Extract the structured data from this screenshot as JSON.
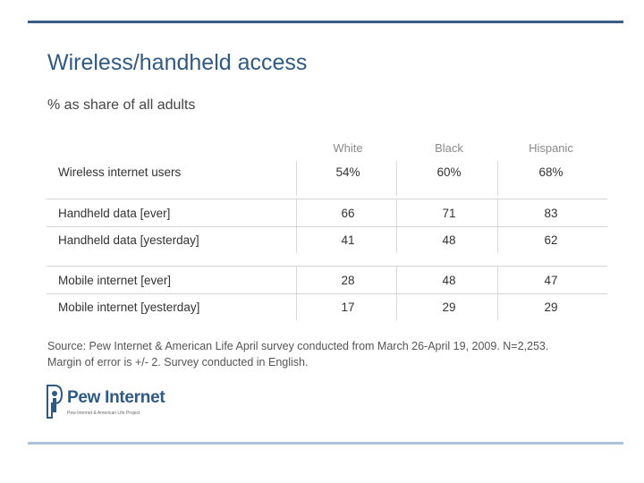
{
  "title": "Wireless/handheld access",
  "subtitle": "% as share of all adults",
  "table": {
    "columns": [
      "White",
      "Black",
      "Hispanic"
    ],
    "rows": [
      {
        "label": "Wireless internet users",
        "values": [
          "54%",
          "60%",
          "68%"
        ]
      },
      {
        "label": "Handheld data [ever]",
        "values": [
          "66",
          "71",
          "83"
        ]
      },
      {
        "label": "Handheld data [yesterday]",
        "values": [
          "41",
          "48",
          "62"
        ]
      },
      {
        "label": "Mobile internet [ever]",
        "values": [
          "28",
          "48",
          "47"
        ]
      },
      {
        "label": "Mobile internet [yesterday]",
        "values": [
          "17",
          "29",
          "29"
        ]
      }
    ]
  },
  "source": {
    "line1": "Source: Pew Internet & American Life April survey conducted from March 26-April 19, 2009. N=2,253.",
    "line2": "Margin of error is +/- 2. Survey conducted in English."
  },
  "logo": {
    "name": "Pew Internet",
    "tagline": "Pew Internet & American Life Project"
  },
  "colors": {
    "accent": "#2f5a84",
    "bottom_rule": "#a9c4dc"
  }
}
